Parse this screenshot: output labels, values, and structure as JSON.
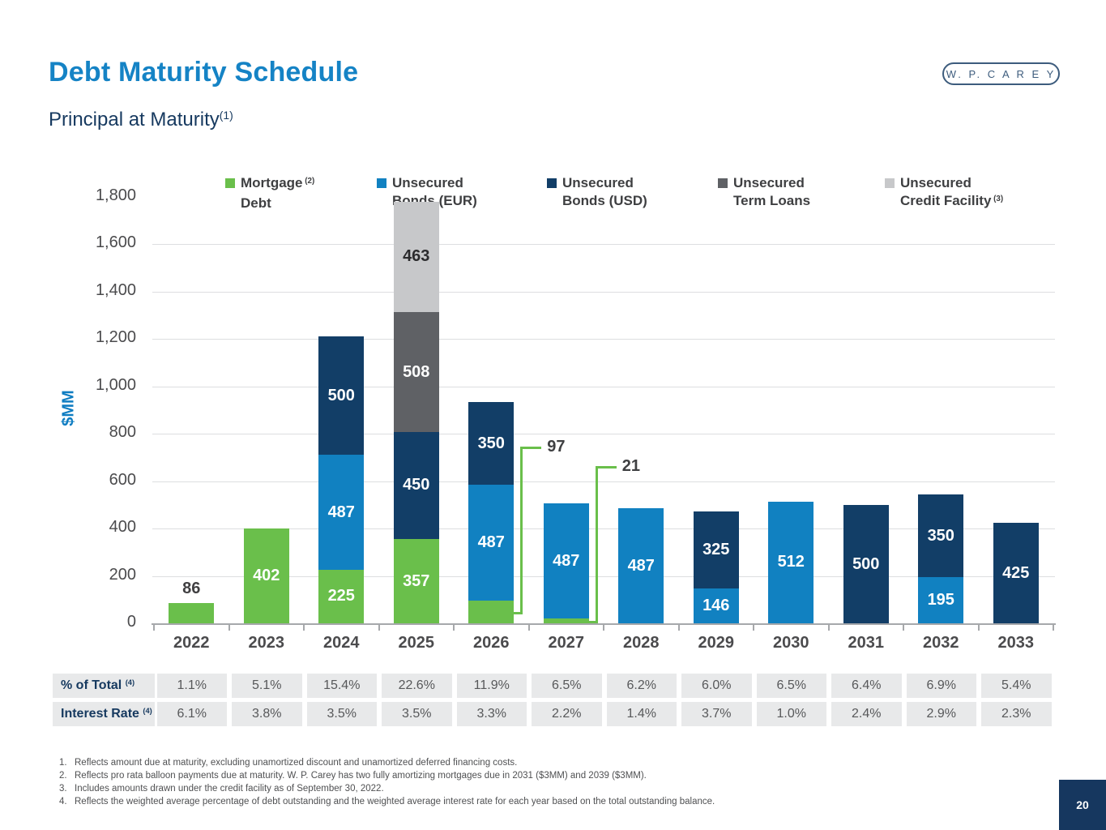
{
  "header": {
    "title": "Debt Maturity Schedule",
    "subtitle": "Principal at Maturity",
    "subtitle_sup": "(1)",
    "logo_text": "W. P. C A R E Y"
  },
  "chart_data": {
    "type": "bar",
    "stacked": true,
    "title": "",
    "xlabel": "",
    "ylabel": "$MM",
    "ylim": [
      0,
      1800
    ],
    "y_ticks": [
      0,
      200,
      400,
      600,
      800,
      1000,
      1200,
      1400,
      1600,
      1800
    ],
    "y_tick_labels": [
      "0",
      "200",
      "400",
      "600",
      "800",
      "1,000",
      "1,200",
      "1,400",
      "1,600",
      "1,800"
    ],
    "grid": "horizontal gridlines at 200-1600",
    "legend_position": "top",
    "categories": [
      "2022",
      "2023",
      "2024",
      "2025",
      "2026",
      "2027",
      "2028",
      "2029",
      "2030",
      "2031",
      "2032",
      "2033"
    ],
    "series": [
      {
        "name": "Mortgage Debt",
        "legend_line1": "Mortgage",
        "legend_line1_sup": "(2)",
        "legend_line2": "Debt",
        "legend_line2_sup": "",
        "color": "#6abf4b",
        "values": [
          86,
          402,
          225,
          357,
          97,
          21,
          0,
          0,
          0,
          0,
          0,
          0
        ]
      },
      {
        "name": "Unsecured Bonds (EUR)",
        "legend_line1": "Unsecured",
        "legend_line1_sup": "",
        "legend_line2": "Bonds (EUR)",
        "legend_line2_sup": "",
        "color": "#1181c1",
        "values": [
          0,
          0,
          487,
          0,
          487,
          487,
          487,
          146,
          512,
          0,
          195,
          0
        ]
      },
      {
        "name": "Unsecured Bonds (USD)",
        "legend_line1": "Unsecured",
        "legend_line1_sup": "",
        "legend_line2": "Bonds (USD)",
        "legend_line2_sup": "",
        "color": "#123e67",
        "values": [
          0,
          0,
          500,
          450,
          350,
          0,
          0,
          325,
          0,
          500,
          350,
          425
        ]
      },
      {
        "name": "Unsecured Term Loans",
        "legend_line1": "Unsecured",
        "legend_line1_sup": "",
        "legend_line2": "Term Loans",
        "legend_line2_sup": "",
        "color": "#5f6165",
        "values": [
          0,
          0,
          0,
          508,
          0,
          0,
          0,
          0,
          0,
          0,
          0,
          0
        ]
      },
      {
        "name": "Unsecured Credit Facility",
        "legend_line1": "Unsecured",
        "legend_line1_sup": "",
        "legend_line2": "Credit Facility",
        "legend_line2_sup": "(3)",
        "color": "#c7c8ca",
        "values": [
          0,
          0,
          0,
          463,
          0,
          0,
          0,
          0,
          0,
          0,
          0,
          0
        ]
      }
    ],
    "above_label_segments": [
      "2022|Mortgage Debt"
    ],
    "dark_label_segments": [
      "2025|Unsecured Credit Facility"
    ],
    "callouts": [
      {
        "category": "2026",
        "series": "Mortgage Debt",
        "text": "97",
        "label_level": 745
      },
      {
        "category": "2027",
        "series": "Mortgage Debt",
        "text": "21",
        "label_level": 665
      }
    ]
  },
  "table": {
    "rows": [
      {
        "label": "% of Total",
        "sup": "(4)",
        "values": [
          "1.1%",
          "5.1%",
          "15.4%",
          "22.6%",
          "11.9%",
          "6.5%",
          "6.2%",
          "6.0%",
          "6.5%",
          "6.4%",
          "6.9%",
          "5.4%"
        ]
      },
      {
        "label": "Interest Rate",
        "sup": "(4)",
        "values": [
          "6.1%",
          "3.8%",
          "3.5%",
          "3.5%",
          "3.3%",
          "2.2%",
          "1.4%",
          "3.7%",
          "1.0%",
          "2.4%",
          "2.9%",
          "2.3%"
        ]
      }
    ]
  },
  "footnotes": [
    {
      "num": "1.",
      "text": "Reflects amount due at maturity, excluding unamortized discount and unamortized deferred financing costs."
    },
    {
      "num": "2.",
      "text": "Reflects pro rata balloon payments due at maturity. W. P. Carey has two fully amortizing mortgages due in 2031 ($3MM) and 2039 ($3MM)."
    },
    {
      "num": "3.",
      "text": "Includes amounts drawn under the credit facility as of September 30, 2022."
    },
    {
      "num": "4.",
      "text": "Reflects the weighted average percentage of debt outstanding and the weighted average interest rate for each year based on the total outstanding balance."
    }
  ],
  "page_number": "20",
  "colors": {
    "title_blue": "#1583c5",
    "navy_text": "#16395f",
    "mortgage_green": "#6abf4b",
    "bonds_eur_blue": "#1181c1",
    "bonds_usd_navy": "#123e67",
    "term_loans_gray": "#5f6165",
    "credit_facility_gray": "#c7c8ca"
  }
}
